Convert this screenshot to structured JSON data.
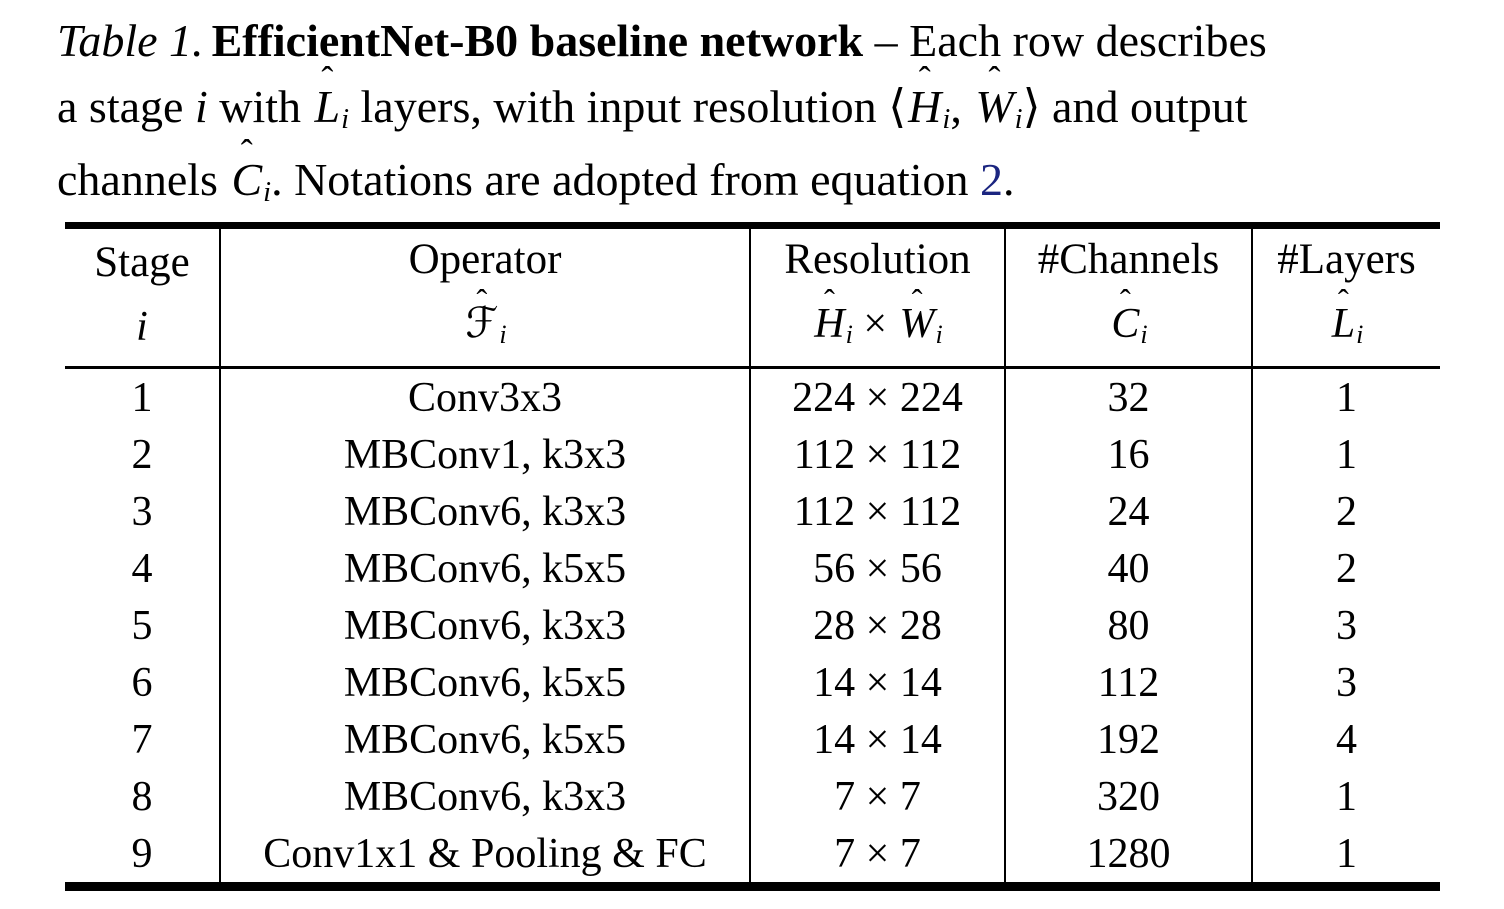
{
  "glyphs": {
    "hat": "ˆ"
  },
  "colors": {
    "link_blue": "#1b2580",
    "text": "#000000",
    "background": "#ffffff"
  },
  "caption": {
    "segments": [
      {
        "t": "Table 1.",
        "c": "it capl"
      },
      {
        "t": "EfficientNet-B0 baseline network",
        "c": "bf"
      },
      {
        "t": " – Each row describes",
        "c": ""
      },
      {
        "c": "br"
      },
      {
        "t": "a stage ",
        "c": ""
      },
      {
        "t": "i",
        "c": "it"
      },
      {
        "t": " with ",
        "c": ""
      },
      {
        "t": "L",
        "c": "it hat"
      },
      {
        "t": "i",
        "c": "sub"
      },
      {
        "t": " layers, with input resolution ",
        "c": ""
      },
      {
        "t": "⟨",
        "c": ""
      },
      {
        "t": "H",
        "c": "it hat"
      },
      {
        "t": "i",
        "c": "sub"
      },
      {
        "t": ", ",
        "c": ""
      },
      {
        "t": "W",
        "c": "it hat"
      },
      {
        "t": "i",
        "c": "sub"
      },
      {
        "t": "⟩",
        "c": ""
      },
      {
        "t": " and output",
        "c": ""
      },
      {
        "c": "br"
      },
      {
        "t": "channels ",
        "c": ""
      },
      {
        "t": "C",
        "c": "it hat"
      },
      {
        "t": "i",
        "c": "sub"
      },
      {
        "t": ". Notations are adopted from equation ",
        "c": ""
      },
      {
        "t": "2",
        "c": "link"
      },
      {
        "t": ".",
        "c": ""
      }
    ]
  },
  "table": {
    "columns": [
      {
        "title": "Stage",
        "sym": [
          {
            "t": "i",
            "c": "it"
          }
        ]
      },
      {
        "title": "Operator",
        "sym": [
          {
            "t": "ℱ",
            "c": "it hat"
          },
          {
            "t": "i",
            "c": "sub"
          }
        ]
      },
      {
        "title": "Resolution",
        "sym": [
          {
            "t": "H",
            "c": "it hat"
          },
          {
            "t": "i",
            "c": "sub"
          },
          {
            "t": " × ",
            "c": ""
          },
          {
            "t": "W",
            "c": "it hat"
          },
          {
            "t": "i",
            "c": "sub"
          }
        ]
      },
      {
        "title": "#Channels",
        "sym": [
          {
            "t": "C",
            "c": "it hat"
          },
          {
            "t": "i",
            "c": "sub"
          }
        ]
      },
      {
        "title": "#Layers",
        "sym": [
          {
            "t": "L",
            "c": "it hat"
          },
          {
            "t": "i",
            "c": "sub"
          }
        ]
      }
    ],
    "rows": [
      [
        "1",
        "Conv3x3",
        "224 × 224",
        "32",
        "1"
      ],
      [
        "2",
        "MBConv1, k3x3",
        "112 × 112",
        "16",
        "1"
      ],
      [
        "3",
        "MBConv6, k3x3",
        "112 × 112",
        "24",
        "2"
      ],
      [
        "4",
        "MBConv6, k5x5",
        "56 × 56",
        "40",
        "2"
      ],
      [
        "5",
        "MBConv6, k3x3",
        "28 × 28",
        "80",
        "3"
      ],
      [
        "6",
        "MBConv6, k5x5",
        "14 × 14",
        "112",
        "3"
      ],
      [
        "7",
        "MBConv6, k5x5",
        "14 × 14",
        "192",
        "4"
      ],
      [
        "8",
        "MBConv6, k3x3",
        "7 × 7",
        "320",
        "1"
      ],
      [
        "9",
        "Conv1x1 & Pooling & FC",
        "7 × 7",
        "1280",
        "1"
      ]
    ]
  },
  "chart_data": {
    "type": "table",
    "title": "Table 1. EfficientNet-B0 baseline network",
    "columns": [
      "Stage i",
      "Operator F̂i",
      "Resolution Ĥi × Ŵi",
      "#Channels Ĉi",
      "#Layers L̂i"
    ],
    "rows": [
      [
        "1",
        "Conv3x3",
        "224 × 224",
        32,
        1
      ],
      [
        "2",
        "MBConv1, k3x3",
        "112 × 112",
        16,
        1
      ],
      [
        "3",
        "MBConv6, k3x3",
        "112 × 112",
        24,
        2
      ],
      [
        "4",
        "MBConv6, k5x5",
        "56 × 56",
        40,
        2
      ],
      [
        "5",
        "MBConv6, k3x3",
        "28 × 28",
        80,
        3
      ],
      [
        "6",
        "MBConv6, k5x5",
        "14 × 14",
        112,
        3
      ],
      [
        "7",
        "MBConv6, k5x5",
        "14 × 14",
        192,
        4
      ],
      [
        "8",
        "MBConv6, k3x3",
        "7 × 7",
        320,
        1
      ],
      [
        "9",
        "Conv1x1 & Pooling & FC",
        "7 × 7",
        1280,
        1
      ]
    ]
  }
}
